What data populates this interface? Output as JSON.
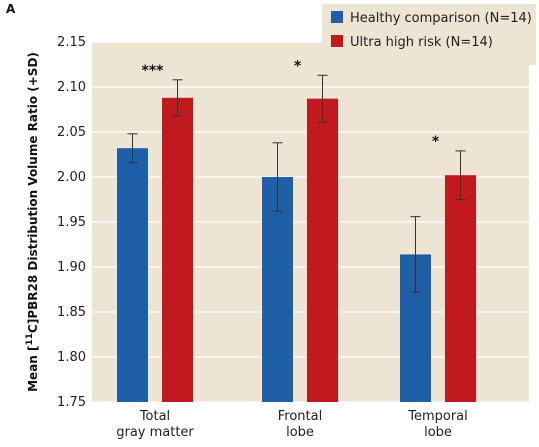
{
  "panel_label": "A",
  "chart_data": {
    "type": "bar",
    "categories": [
      [
        "Total",
        "gray matter"
      ],
      [
        "Frontal",
        "lobe"
      ],
      [
        "Temporal",
        "lobe"
      ]
    ],
    "series": [
      {
        "name": "Healthy comparison (N=14)",
        "color": "#1f5fa8",
        "values": [
          2.032,
          2.0,
          1.914
        ],
        "errors": [
          0.016,
          0.038,
          0.042
        ]
      },
      {
        "name": "Ultra high risk (N=14)",
        "color": "#c0191e",
        "values": [
          2.088,
          2.087,
          2.002
        ],
        "errors": [
          0.02,
          0.026,
          0.027
        ]
      }
    ],
    "ylabel_parts": [
      "Mean [",
      "11",
      "C]PBR28 Distribution Volume Ratio (+SD)"
    ],
    "ylim": [
      1.75,
      2.15
    ],
    "yticks": [
      "1.75",
      "1.80",
      "1.85",
      "1.90",
      "1.95",
      "2.00",
      "2.05",
      "2.10",
      "2.15"
    ],
    "grid": true,
    "legend_position": "top-right",
    "significance": [
      "***",
      "*",
      "*"
    ],
    "plot_bg": "#ede4d3",
    "legend_bg": "#ede4d3"
  }
}
